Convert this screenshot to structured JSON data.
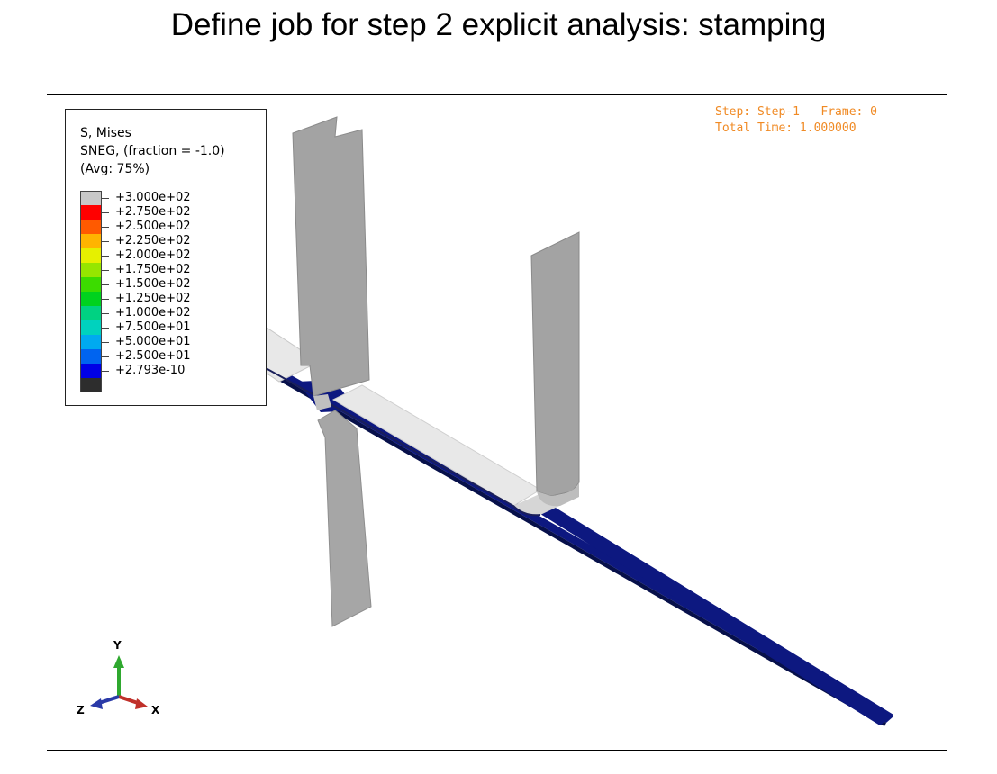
{
  "slide": {
    "title": "Define job for step 2 explicit analysis: stamping"
  },
  "legend": {
    "line1": "S, Mises",
    "line2": "SNEG, (fraction = -1.0)",
    "line3": "(Avg: 75%)",
    "entries": [
      {
        "value": "+3.000e+02",
        "color": "#c8c8c8"
      },
      {
        "value": "+2.750e+02",
        "color": "#ff0000"
      },
      {
        "value": "+2.500e+02",
        "color": "#ff5a00"
      },
      {
        "value": "+2.250e+02",
        "color": "#ffb400"
      },
      {
        "value": "+2.000e+02",
        "color": "#e6f000"
      },
      {
        "value": "+1.750e+02",
        "color": "#96e600"
      },
      {
        "value": "+1.500e+02",
        "color": "#3cdc00"
      },
      {
        "value": "+1.250e+02",
        "color": "#00d21e"
      },
      {
        "value": "+1.000e+02",
        "color": "#00d282"
      },
      {
        "value": "+7.500e+01",
        "color": "#00d2be"
      },
      {
        "value": "+5.000e+01",
        "color": "#00aaf0"
      },
      {
        "value": "+2.500e+01",
        "color": "#0064f0"
      },
      {
        "value": "+2.793e-10",
        "color": "#0000e6"
      },
      {
        "value": "",
        "color": "#2d2d2d"
      }
    ]
  },
  "status": {
    "step_line": "Step: Step-1   Frame: 0",
    "time_line": "Total Time: 1.000000"
  },
  "triad": {
    "y_label": "Y",
    "x_label": "X",
    "z_label": "Z",
    "y_color": "#2fa82f",
    "x_color": "#c0302a",
    "z_color": "#2a3aa8"
  },
  "model": {
    "blank_color": "#0d1880",
    "tool_color": "#a3a3a3",
    "holder_color": "#e6e6e6"
  }
}
